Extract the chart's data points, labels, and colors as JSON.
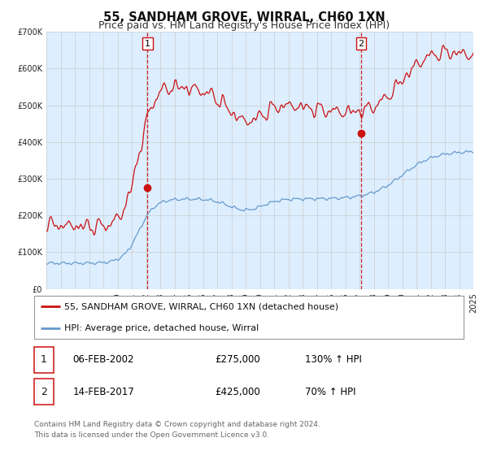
{
  "title": "55, SANDHAM GROVE, WIRRAL, CH60 1XN",
  "subtitle": "Price paid vs. HM Land Registry's House Price Index (HPI)",
  "ylim": [
    0,
    700000
  ],
  "yticks": [
    0,
    100000,
    200000,
    300000,
    400000,
    500000,
    600000,
    700000
  ],
  "ytick_labels": [
    "£0",
    "£100K",
    "£200K",
    "£300K",
    "£400K",
    "£500K",
    "£600K",
    "£700K"
  ],
  "bg_color": "#ddeeff",
  "fig_bg_color": "#ffffff",
  "hpi_line_color": "#6699cc",
  "price_line_color": "#cc1111",
  "marker_color": "#cc1111",
  "vline_color": "#cc1111",
  "transaction1_date": 2002.1,
  "transaction1_price": 275000,
  "transaction2_date": 2017.12,
  "transaction2_price": 425000,
  "legend_line1": "55, SANDHAM GROVE, WIRRAL, CH60 1XN (detached house)",
  "legend_line2": "HPI: Average price, detached house, Wirral",
  "table_row1": [
    "1",
    "06-FEB-2002",
    "£275,000",
    "130% ↑ HPI"
  ],
  "table_row2": [
    "2",
    "14-FEB-2017",
    "£425,000",
    "70% ↑ HPI"
  ],
  "footer1": "Contains HM Land Registry data © Crown copyright and database right 2024.",
  "footer2": "This data is licensed under the Open Government Licence v3.0.",
  "title_fontsize": 10.5,
  "subtitle_fontsize": 9,
  "tick_fontsize": 7,
  "legend_fontsize": 8,
  "table_fontsize": 8.5,
  "footer_fontsize": 6.5,
  "xstart": 1995,
  "xend": 2025,
  "grid_color": "#cccccc",
  "label_box_color": "#cc1111"
}
